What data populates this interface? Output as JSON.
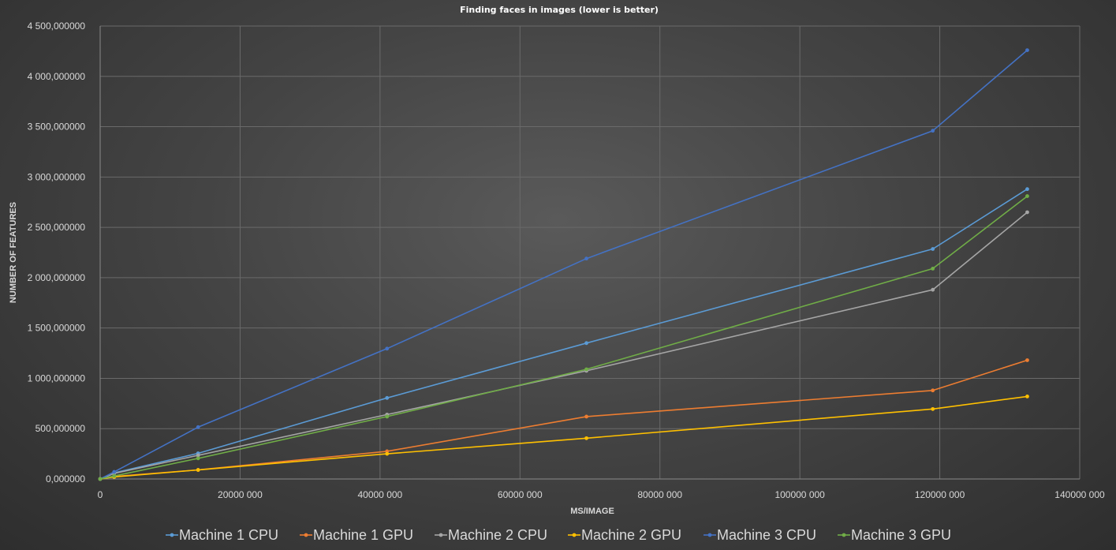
{
  "chart_data": {
    "type": "line",
    "title": "Finding faces in images (lower is better)",
    "xlabel": "MS/IMAGE",
    "ylabel": "NUMBER OF FEATURES",
    "xlim": [
      0,
      140000000
    ],
    "ylim": [
      0,
      4500000000
    ],
    "x_ticks": [
      0,
      20000000,
      40000000,
      60000000,
      80000000,
      100000000,
      120000000,
      140000000
    ],
    "x_tick_labels": [
      "0",
      "20000 000",
      "40000 000",
      "60000 000",
      "80000 000",
      "100000 000",
      "120000 000",
      "140000 000"
    ],
    "y_ticks": [
      0,
      500000000,
      1000000000,
      1500000000,
      2000000000,
      2500000000,
      3000000000,
      3500000000,
      4000000000,
      4500000000
    ],
    "y_tick_labels": [
      "0,000000",
      "500,000000",
      "1 000,000000",
      "1 500,000000",
      "2 000,000000",
      "2 500,000000",
      "3 000,000000",
      "3 500,000000",
      "4 000,000000",
      "4 500,000000"
    ],
    "grid": true,
    "legend_position": "bottom",
    "series": [
      {
        "name": "Machine 1 CPU",
        "color": "#5b9bd5",
        "points": [
          [
            0,
            0
          ],
          [
            2000000,
            60000000
          ],
          [
            14000000,
            255000000
          ],
          [
            41000000,
            805000000
          ],
          [
            69500000,
            1350000000
          ],
          [
            119000000,
            2285000000
          ],
          [
            132500000,
            2880000000
          ]
        ]
      },
      {
        "name": "Machine 1 GPU",
        "color": "#ed7d31",
        "points": [
          [
            0,
            0
          ],
          [
            2000000,
            25000000
          ],
          [
            14000000,
            90000000
          ],
          [
            41000000,
            275000000
          ],
          [
            69500000,
            620000000
          ],
          [
            119000000,
            880000000
          ],
          [
            132500000,
            1180000000
          ]
        ]
      },
      {
        "name": "Machine 2 CPU",
        "color": "#a5a5a5",
        "points": [
          [
            0,
            0
          ],
          [
            2000000,
            55000000
          ],
          [
            14000000,
            235000000
          ],
          [
            41000000,
            640000000
          ],
          [
            69500000,
            1075000000
          ],
          [
            119000000,
            1880000000
          ],
          [
            132500000,
            2650000000
          ]
        ]
      },
      {
        "name": "Machine 2 GPU",
        "color": "#ffc000",
        "points": [
          [
            0,
            0
          ],
          [
            2000000,
            20000000
          ],
          [
            14000000,
            90000000
          ],
          [
            41000000,
            250000000
          ],
          [
            69500000,
            405000000
          ],
          [
            119000000,
            695000000
          ],
          [
            132500000,
            820000000
          ]
        ]
      },
      {
        "name": "Machine 3 CPU",
        "color": "#4472c4",
        "points": [
          [
            0,
            0
          ],
          [
            2000000,
            70000000
          ],
          [
            14000000,
            515000000
          ],
          [
            41000000,
            1295000000
          ],
          [
            69500000,
            2190000000
          ],
          [
            119000000,
            3460000000
          ],
          [
            132500000,
            4260000000
          ]
        ]
      },
      {
        "name": "Machine 3 GPU",
        "color": "#70ad47",
        "points": [
          [
            0,
            0
          ],
          [
            2000000,
            30000000
          ],
          [
            14000000,
            205000000
          ],
          [
            41000000,
            620000000
          ],
          [
            69500000,
            1090000000
          ],
          [
            119000000,
            2090000000
          ],
          [
            132500000,
            2810000000
          ]
        ]
      }
    ]
  }
}
